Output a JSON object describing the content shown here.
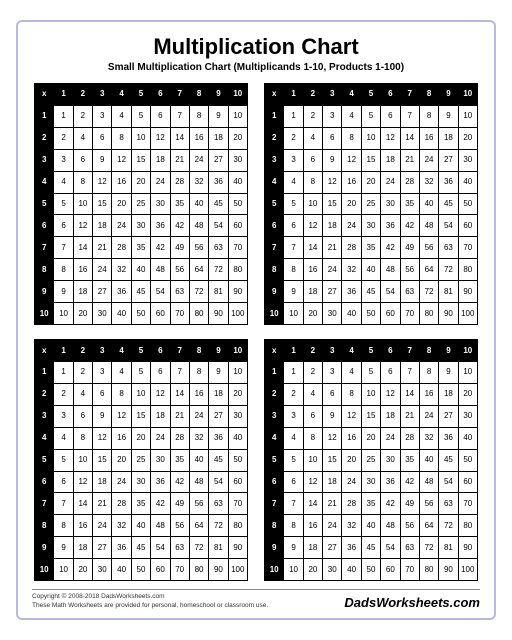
{
  "title": "Multiplication Chart",
  "subtitle": "Small Multiplication Chart (Multiplicands 1-10, Products 1-100)",
  "chart": {
    "type": "table",
    "corner_symbol": "x",
    "range_min": 1,
    "range_max": 10,
    "header_bg": "#000000",
    "header_fg": "#ffffff",
    "cell_bg": "#ffffff",
    "cell_fg": "#000000",
    "border_color": "#000000",
    "copies": 4
  },
  "page_border_color": "#b8b8e8",
  "footer": {
    "copyright": "Copyright © 2008-2018 DadsWorksheets.com",
    "note": "These Math Worksheets are provided for personal, homeschool or classroom use.",
    "brand": "DadsWorksheets.com"
  }
}
